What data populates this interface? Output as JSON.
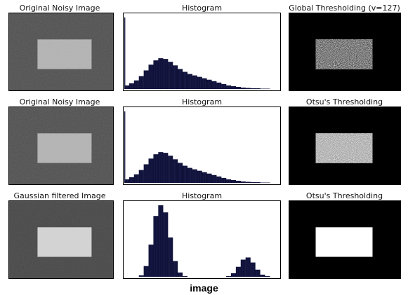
{
  "chart_data": [
    {
      "type": "image",
      "title": "Original Noisy Image",
      "content": "noisy grayscale image with lighter rectangle in center"
    },
    {
      "type": "bar",
      "title": "Histogram",
      "xlim": [
        0,
        255
      ],
      "x": [
        0,
        8,
        16,
        24,
        32,
        40,
        48,
        56,
        64,
        72,
        80,
        88,
        96,
        104,
        112,
        120,
        128,
        136,
        144,
        152,
        160,
        168,
        176,
        184,
        192,
        200,
        208,
        216,
        224,
        232,
        240,
        248
      ],
      "values": [
        0.05,
        0.08,
        0.12,
        0.18,
        0.26,
        0.34,
        0.4,
        0.43,
        0.42,
        0.38,
        0.33,
        0.28,
        0.24,
        0.21,
        0.19,
        0.17,
        0.15,
        0.13,
        0.11,
        0.09,
        0.07,
        0.05,
        0.04,
        0.03,
        0.02,
        0.015,
        0.01,
        0.01,
        0.005,
        0.005,
        0.0,
        0.0
      ],
      "spike_at_0": 1.0
    },
    {
      "type": "image",
      "title": "Global Thresholding (v=127)",
      "content": "binary image: sparse white speckles on black, speckled white rectangle in center"
    },
    {
      "type": "image",
      "title": "Original Noisy Image",
      "content": "noisy grayscale image with lighter rectangle in center"
    },
    {
      "type": "bar",
      "title": "Histogram",
      "xlim": [
        0,
        255
      ],
      "x": [
        0,
        8,
        16,
        24,
        32,
        40,
        48,
        56,
        64,
        72,
        80,
        88,
        96,
        104,
        112,
        120,
        128,
        136,
        144,
        152,
        160,
        168,
        176,
        184,
        192,
        200,
        208,
        216,
        224,
        232,
        240,
        248
      ],
      "values": [
        0.05,
        0.08,
        0.12,
        0.18,
        0.26,
        0.34,
        0.4,
        0.43,
        0.42,
        0.38,
        0.33,
        0.28,
        0.24,
        0.21,
        0.19,
        0.17,
        0.15,
        0.13,
        0.11,
        0.09,
        0.07,
        0.05,
        0.04,
        0.03,
        0.02,
        0.015,
        0.01,
        0.01,
        0.005,
        0.005,
        0.0,
        0.0
      ],
      "spike_at_0": 1.0
    },
    {
      "type": "image",
      "title": "Otsu's Thresholding",
      "content": "binary image: more white speckles on black, mostly white rectangle in center"
    },
    {
      "type": "image",
      "title": "Gaussian filtered Image",
      "content": "smoothed grayscale image with lighter rectangle in center"
    },
    {
      "type": "bar",
      "title": "Histogram",
      "xlim": [
        0,
        255
      ],
      "x": [
        0,
        8,
        16,
        24,
        32,
        40,
        48,
        56,
        64,
        72,
        80,
        88,
        96,
        104,
        112,
        120,
        128,
        136,
        144,
        152,
        160,
        168,
        176,
        184,
        192,
        200,
        208,
        216,
        224,
        232,
        240,
        248
      ],
      "values": [
        0.0,
        0.0,
        0.0,
        0.02,
        0.15,
        0.45,
        0.85,
        1.0,
        0.9,
        0.55,
        0.22,
        0.06,
        0.01,
        0.0,
        0.0,
        0.0,
        0.0,
        0.0,
        0.0,
        0.0,
        0.0,
        0.01,
        0.05,
        0.14,
        0.24,
        0.27,
        0.2,
        0.1,
        0.03,
        0.01,
        0.0,
        0.0
      ]
    },
    {
      "type": "image",
      "title": "Otsu's Thresholding",
      "content": "clean binary image: solid white rectangle on black"
    }
  ],
  "caption": "image"
}
